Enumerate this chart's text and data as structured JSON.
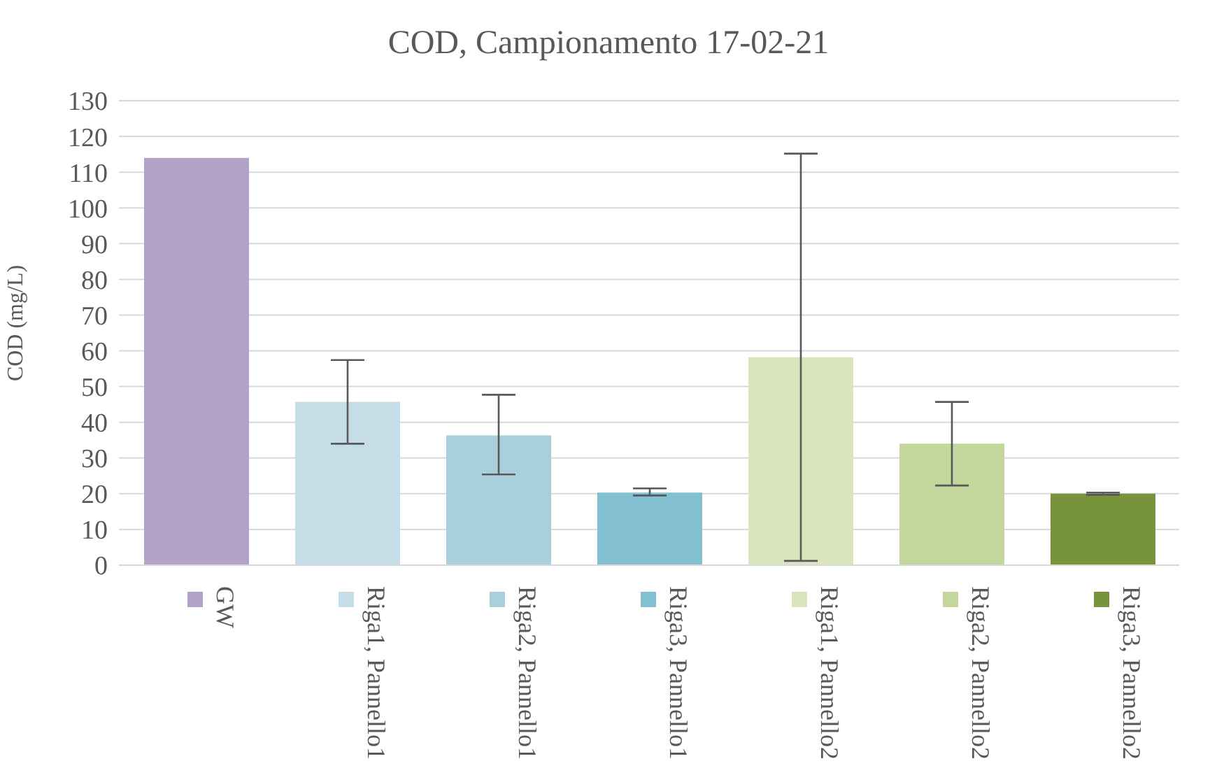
{
  "chart_data": {
    "type": "bar",
    "title": "COD, Campionamento 17-02-21",
    "ylabel": "COD (mg/L)",
    "categories": [
      null
    ],
    "series": [
      {
        "name": "GW",
        "color": "#b3a2c7",
        "values": [
          114
        ]
      },
      {
        "name": "Riga1, Pannello1",
        "color": "#c5dde7",
        "values": [
          45.7
        ],
        "errors": [
          [
            34,
            57.4
          ]
        ]
      },
      {
        "name": "Riga2, Pannello1",
        "color": "#a9cfdc",
        "values": [
          36.3
        ],
        "errors": [
          [
            25.4,
            47.7
          ]
        ]
      },
      {
        "name": "Riga3, Pannello1",
        "color": "#82bfd0",
        "values": [
          20.3
        ],
        "errors": [
          [
            19.5,
            21.5
          ]
        ]
      },
      {
        "name": "Riga1, Pannello2",
        "color": "#d9e5bd",
        "values": [
          58.2
        ],
        "errors": [
          [
            1.2,
            115.2
          ]
        ]
      },
      {
        "name": "Riga2, Pannello2",
        "color": "#c3d69b",
        "values": [
          34
        ],
        "errors": [
          [
            22.3,
            45.7
          ]
        ]
      },
      {
        "name": "Riga3, Pannello2",
        "color": "#77933c",
        "values": [
          20
        ],
        "errors": [
          [
            19.7,
            20.3
          ]
        ]
      }
    ],
    "ylim": [
      0,
      130
    ],
    "yticks": [
      0,
      10,
      20,
      30,
      40,
      50,
      60,
      70,
      80,
      90,
      100,
      110,
      120,
      130
    ],
    "grid": "y",
    "legend": "bottom",
    "tick_labels": "y"
  }
}
